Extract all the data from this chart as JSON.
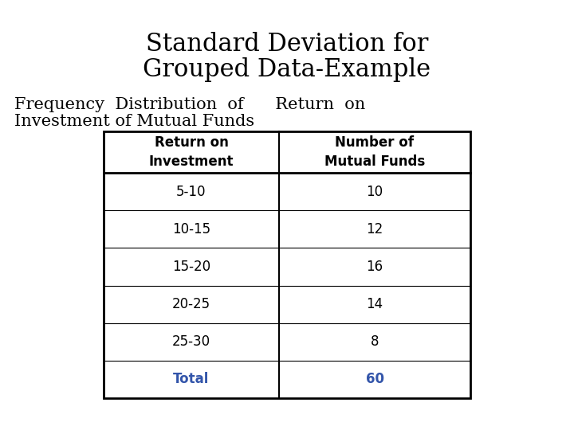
{
  "title_line1": "Standard Deviation for",
  "title_line2": "Grouped Data-Example",
  "subtitle_line1": "Frequency  Distribution  of      Return  on",
  "subtitle_line2": "Investment of Mutual Funds",
  "col1_header": "Return on\nInvestment",
  "col2_header": "Number of\nMutual Funds",
  "rows": [
    [
      "5-10",
      "10"
    ],
    [
      "10-15",
      "12"
    ],
    [
      "15-20",
      "16"
    ],
    [
      "20-25",
      "14"
    ],
    [
      "25-30",
      "8"
    ],
    [
      "Total",
      "60"
    ]
  ],
  "total_row_color": "#3355aa",
  "background_color": "#ffffff",
  "title_fontsize": 22,
  "subtitle_fontsize": 15,
  "table_header_fontsize": 12,
  "table_data_fontsize": 12
}
